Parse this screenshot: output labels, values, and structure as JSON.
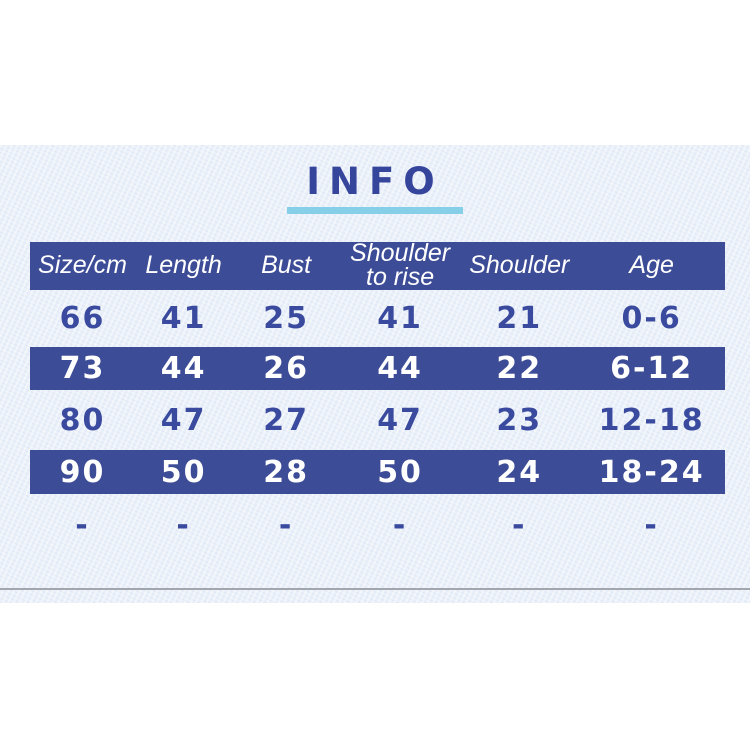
{
  "card": {
    "title": "INFO",
    "title_color": "#36459c",
    "underline_color": "#85d0e8",
    "paper_color": "#eaf0f9",
    "edge_line_color": "#a2a7ad"
  },
  "table": {
    "accent_color": "#3d4c96",
    "header_text_color": "#ffffff",
    "body_text_color": "#3a4a9e",
    "columns": [
      "Size/cm",
      "Length",
      "Bust",
      "Shoulder to rise",
      "Shoulder",
      "Age"
    ],
    "rows": [
      {
        "highlight": false,
        "values": [
          "66",
          "41",
          "25",
          "41",
          "21",
          "0-6"
        ]
      },
      {
        "highlight": true,
        "values": [
          "73",
          "44",
          "26",
          "44",
          "22",
          "6-12"
        ]
      },
      {
        "highlight": false,
        "values": [
          "80",
          "47",
          "27",
          "47",
          "23",
          "12-18"
        ]
      },
      {
        "highlight": true,
        "values": [
          "90",
          "50",
          "28",
          "50",
          "24",
          "18-24"
        ]
      },
      {
        "highlight": false,
        "values": [
          "-",
          "-",
          "-",
          "-",
          "-",
          "-"
        ]
      }
    ]
  },
  "chart_data": {
    "type": "table",
    "title": "INFO",
    "columns": [
      "Size/cm",
      "Length",
      "Bust",
      "Shoulder to rise",
      "Shoulder",
      "Age"
    ],
    "rows": [
      [
        "66",
        "41",
        "25",
        "41",
        "21",
        "0-6"
      ],
      [
        "73",
        "44",
        "26",
        "44",
        "22",
        "6-12"
      ],
      [
        "80",
        "47",
        "27",
        "47",
        "23",
        "12-18"
      ],
      [
        "90",
        "50",
        "28",
        "50",
        "24",
        "18-24"
      ],
      [
        "-",
        "-",
        "-",
        "-",
        "-",
        "-"
      ]
    ],
    "highlighted_rows": [
      1,
      3
    ],
    "notes": "Size chart; header row and rows 2 and 4 have dark blue background with white text"
  }
}
